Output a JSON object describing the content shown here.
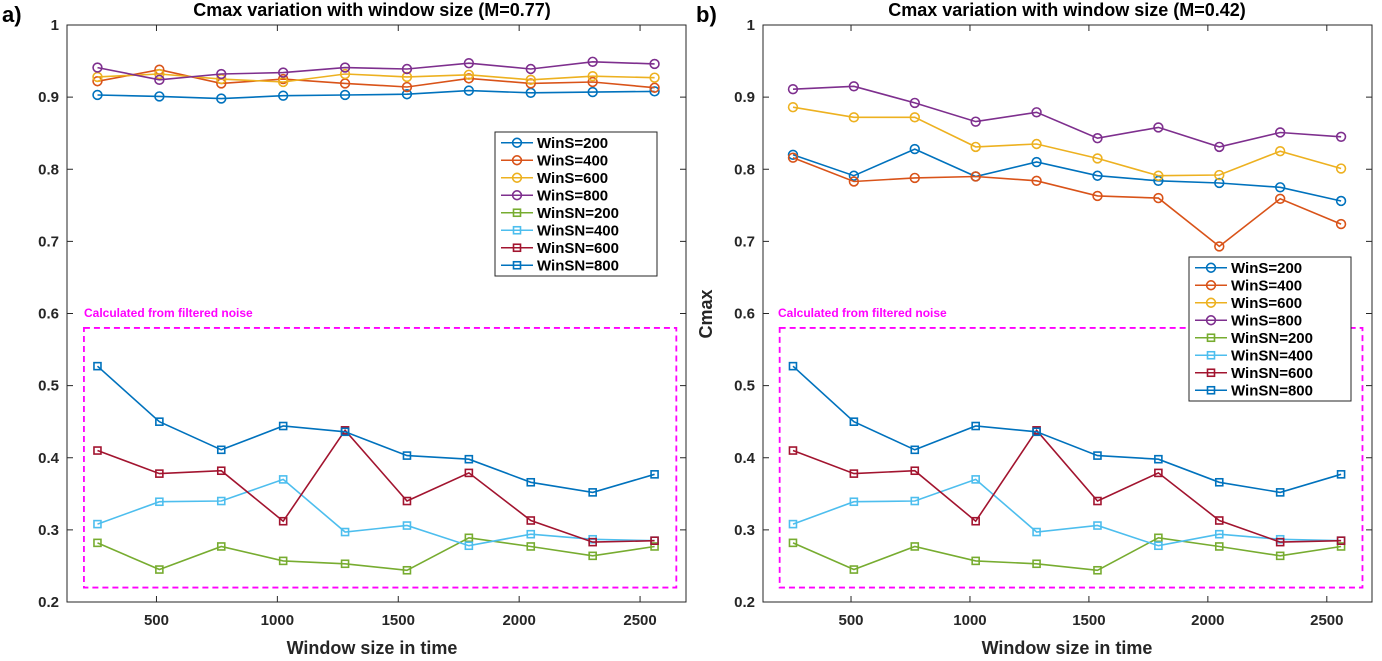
{
  "chart_data": [
    {
      "type": "line",
      "panel_label": "a)",
      "title": "Cmax variation with window size (M=0.77)",
      "xlabel": "Window size in time",
      "ylabel": "",
      "xlim": [
        130,
        2690
      ],
      "ylim": [
        0.2,
        1.0
      ],
      "xticks": [
        500,
        1000,
        1500,
        2000,
        2500
      ],
      "yticks": [
        0.2,
        0.3,
        0.4,
        0.5,
        0.6,
        0.7,
        0.8,
        0.9,
        1.0
      ],
      "ytick_labels": [
        "0.2",
        "0.3",
        "0.4",
        "0.5",
        "0.6",
        "0.7",
        "0.8",
        "0.9",
        "1"
      ],
      "legend_position": "upper-right",
      "annotation": {
        "text": "Calculated from filtered noise",
        "box_x": [
          200,
          2650
        ],
        "box_y": [
          0.22,
          0.58
        ]
      },
      "x": [
        256,
        512,
        768,
        1024,
        1280,
        1536,
        1792,
        2048,
        2304,
        2560
      ],
      "series": [
        {
          "name": "WinS=200",
          "marker": "circle",
          "color": "#0072BD",
          "values": [
            0.903,
            0.901,
            0.898,
            0.902,
            0.903,
            0.904,
            0.909,
            0.906,
            0.907,
            0.908
          ]
        },
        {
          "name": "WinS=400",
          "marker": "circle",
          "color": "#D95319",
          "values": [
            0.922,
            0.938,
            0.919,
            0.925,
            0.919,
            0.914,
            0.926,
            0.919,
            0.921,
            0.913
          ]
        },
        {
          "name": "WinS=600",
          "marker": "circle",
          "color": "#EDB120",
          "values": [
            0.928,
            0.932,
            0.925,
            0.921,
            0.932,
            0.928,
            0.931,
            0.924,
            0.929,
            0.927
          ]
        },
        {
          "name": "WinS=800",
          "marker": "circle",
          "color": "#7E2F8E",
          "values": [
            0.941,
            0.924,
            0.932,
            0.934,
            0.941,
            0.939,
            0.947,
            0.939,
            0.949,
            0.946
          ]
        },
        {
          "name": "WinSN=200",
          "marker": "square",
          "color": "#77AC30",
          "values": [
            0.282,
            0.245,
            0.277,
            0.257,
            0.253,
            0.244,
            0.289,
            0.277,
            0.264,
            0.277
          ]
        },
        {
          "name": "WinSN=400",
          "marker": "square",
          "color": "#4DBEEE",
          "values": [
            0.308,
            0.339,
            0.34,
            0.37,
            0.297,
            0.306,
            0.278,
            0.294,
            0.287,
            0.285
          ]
        },
        {
          "name": "WinSN=600",
          "marker": "square",
          "color": "#A2142F",
          "values": [
            0.41,
            0.378,
            0.382,
            0.312,
            0.438,
            0.34,
            0.379,
            0.313,
            0.283,
            0.285
          ]
        },
        {
          "name": "WinSN=800",
          "marker": "square",
          "color": "#0072BD",
          "values": [
            0.527,
            0.45,
            0.411,
            0.444,
            0.436,
            0.403,
            0.398,
            0.366,
            0.352,
            0.377
          ]
        }
      ]
    },
    {
      "type": "line",
      "panel_label": "b)",
      "title": "Cmax variation with window size (M=0.42)",
      "xlabel": "Window size in time",
      "ylabel": "Cmax",
      "xlim": [
        130,
        2690
      ],
      "ylim": [
        0.2,
        1.0
      ],
      "xticks": [
        500,
        1000,
        1500,
        2000,
        2500
      ],
      "yticks": [
        0.2,
        0.3,
        0.4,
        0.5,
        0.6,
        0.7,
        0.8,
        0.9,
        1.0
      ],
      "ytick_labels": [
        "0.2",
        "0.3",
        "0.4",
        "0.5",
        "0.6",
        "0.7",
        "0.8",
        "0.9",
        "1"
      ],
      "legend_position": "center-right",
      "annotation": {
        "text": "Calculated from filtered noise",
        "box_x": [
          200,
          2650
        ],
        "box_y": [
          0.22,
          0.58
        ]
      },
      "x": [
        256,
        512,
        768,
        1024,
        1280,
        1536,
        1792,
        2048,
        2304,
        2560
      ],
      "series": [
        {
          "name": "WinS=200",
          "marker": "circle",
          "color": "#0072BD",
          "values": [
            0.82,
            0.791,
            0.828,
            0.79,
            0.81,
            0.791,
            0.784,
            0.781,
            0.775,
            0.756
          ]
        },
        {
          "name": "WinS=400",
          "marker": "circle",
          "color": "#D95319",
          "values": [
            0.816,
            0.783,
            0.788,
            0.79,
            0.784,
            0.763,
            0.76,
            0.693,
            0.759,
            0.724
          ]
        },
        {
          "name": "WinS=600",
          "marker": "circle",
          "color": "#EDB120",
          "values": [
            0.886,
            0.872,
            0.872,
            0.831,
            0.835,
            0.815,
            0.791,
            0.792,
            0.825,
            0.801
          ]
        },
        {
          "name": "WinS=800",
          "marker": "circle",
          "color": "#7E2F8E",
          "values": [
            0.911,
            0.915,
            0.892,
            0.866,
            0.879,
            0.843,
            0.858,
            0.831,
            0.851,
            0.845
          ]
        },
        {
          "name": "WinSN=200",
          "marker": "square",
          "color": "#77AC30",
          "values": [
            0.282,
            0.245,
            0.277,
            0.257,
            0.253,
            0.244,
            0.289,
            0.277,
            0.264,
            0.277
          ]
        },
        {
          "name": "WinSN=400",
          "marker": "square",
          "color": "#4DBEEE",
          "values": [
            0.308,
            0.339,
            0.34,
            0.37,
            0.297,
            0.306,
            0.278,
            0.294,
            0.287,
            0.285
          ]
        },
        {
          "name": "WinSN=600",
          "marker": "square",
          "color": "#A2142F",
          "values": [
            0.41,
            0.378,
            0.382,
            0.312,
            0.438,
            0.34,
            0.379,
            0.313,
            0.283,
            0.285
          ]
        },
        {
          "name": "WinSN=800",
          "marker": "square",
          "color": "#0072BD",
          "values": [
            0.527,
            0.45,
            0.411,
            0.444,
            0.436,
            0.403,
            0.398,
            0.366,
            0.352,
            0.377
          ]
        }
      ]
    }
  ]
}
